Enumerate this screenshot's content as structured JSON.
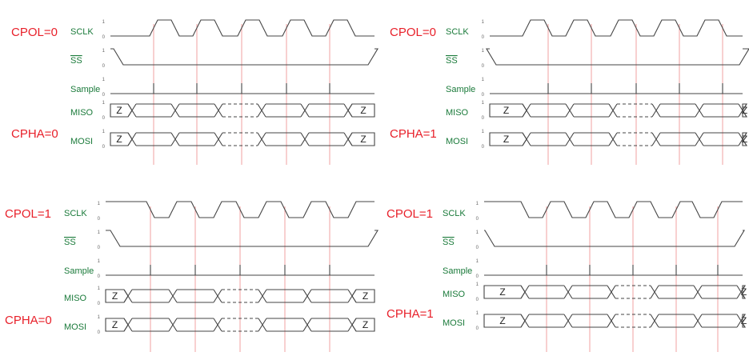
{
  "colors": {
    "mode_label": "#e8202a",
    "signal_label": "#1a7a3a",
    "edge_line": "#f2a0a0",
    "waveform": "#444444",
    "hiz_fill": "#d6d6d6"
  },
  "signals": {
    "sclk": "SCLK",
    "ss": "SS",
    "sample": "Sample",
    "miso": "MISO",
    "mosi": "MOSI",
    "high": "1",
    "low": "0",
    "hiz": "Z"
  },
  "panels": [
    {
      "id": "cpol0-cpha0",
      "cpol": "CPOL=0",
      "cpha": "CPHA=0",
      "clock_idle": 0,
      "phase": 0
    },
    {
      "id": "cpol0-cpha1",
      "cpol": "CPOL=0",
      "cpha": "CPHA=1",
      "clock_idle": 0,
      "phase": 1
    },
    {
      "id": "cpol1-cpha0",
      "cpol": "CPOL=1",
      "cpha": "CPHA=0",
      "clock_idle": 1,
      "phase": 0
    },
    {
      "id": "cpol1-cpha1",
      "cpol": "CPOL=1",
      "cpha": "CPHA=1",
      "clock_idle": 1,
      "phase": 1
    }
  ]
}
